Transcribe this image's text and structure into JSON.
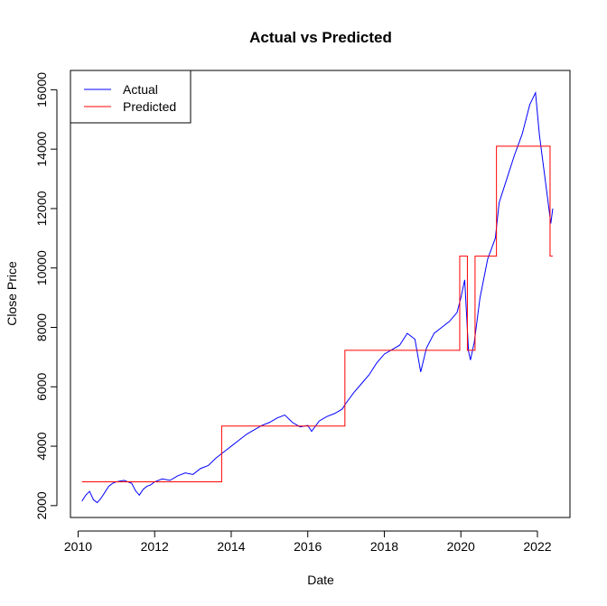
{
  "chart_data": {
    "type": "line",
    "title": "Actual vs Predicted",
    "xlabel": "Date",
    "ylabel": "Close Price",
    "xlim": [
      2009.8,
      2022.85
    ],
    "ylim": [
      1600,
      16650
    ],
    "x_ticks": [
      2010,
      2012,
      2014,
      2016,
      2018,
      2020,
      2022
    ],
    "y_ticks": [
      2000,
      4000,
      6000,
      8000,
      10000,
      12000,
      14000,
      16000
    ],
    "grid": false,
    "legend_position": "top-left",
    "series": [
      {
        "name": "Actual",
        "color": "#0000FF",
        "x": [
          2010.1,
          2010.2,
          2010.3,
          2010.4,
          2010.5,
          2010.6,
          2010.7,
          2010.8,
          2010.9,
          2011.0,
          2011.2,
          2011.4,
          2011.5,
          2011.6,
          2011.7,
          2011.8,
          2011.9,
          2012.0,
          2012.2,
          2012.4,
          2012.6,
          2012.8,
          2013.0,
          2013.2,
          2013.4,
          2013.6,
          2013.8,
          2014.0,
          2014.2,
          2014.4,
          2014.6,
          2014.8,
          2015.0,
          2015.2,
          2015.4,
          2015.6,
          2015.8,
          2016.0,
          2016.1,
          2016.3,
          2016.5,
          2016.7,
          2016.9,
          2017.0,
          2017.2,
          2017.4,
          2017.6,
          2017.8,
          2018.0,
          2018.2,
          2018.4,
          2018.6,
          2018.8,
          2018.95,
          2019.1,
          2019.3,
          2019.5,
          2019.7,
          2019.9,
          2020.0,
          2020.1,
          2020.2,
          2020.25,
          2020.35,
          2020.5,
          2020.7,
          2020.9,
          2021.0,
          2021.2,
          2021.4,
          2021.6,
          2021.8,
          2021.95,
          2022.05,
          2022.15,
          2022.25,
          2022.35,
          2022.4
        ],
        "values": [
          2150,
          2350,
          2480,
          2200,
          2100,
          2250,
          2450,
          2650,
          2750,
          2800,
          2850,
          2750,
          2500,
          2350,
          2550,
          2650,
          2700,
          2800,
          2900,
          2850,
          3000,
          3100,
          3050,
          3250,
          3350,
          3600,
          3800,
          4000,
          4200,
          4400,
          4550,
          4700,
          4800,
          4950,
          5050,
          4800,
          4650,
          4700,
          4500,
          4850,
          5000,
          5100,
          5250,
          5450,
          5800,
          6100,
          6400,
          6800,
          7100,
          7250,
          7400,
          7800,
          7600,
          6500,
          7300,
          7800,
          8000,
          8200,
          8500,
          9000,
          9600,
          7200,
          6900,
          7500,
          9000,
          10300,
          11000,
          12200,
          13000,
          13800,
          14500,
          15500,
          15900,
          14500,
          13500,
          12500,
          11500,
          12000
        ]
      },
      {
        "name": "Predicted",
        "color": "#FF0000",
        "x": [
          2010.1,
          2013.75,
          2013.75,
          2016.97,
          2016.97,
          2019.97,
          2019.97,
          2020.17,
          2020.17,
          2020.37,
          2020.37,
          2020.93,
          2020.93,
          2022.33,
          2022.33,
          2022.4
        ],
        "values": [
          2800,
          2800,
          4680,
          4680,
          7230,
          7230,
          10400,
          10400,
          7230,
          7230,
          10400,
          10400,
          14100,
          14100,
          10400,
          10400
        ]
      }
    ]
  }
}
